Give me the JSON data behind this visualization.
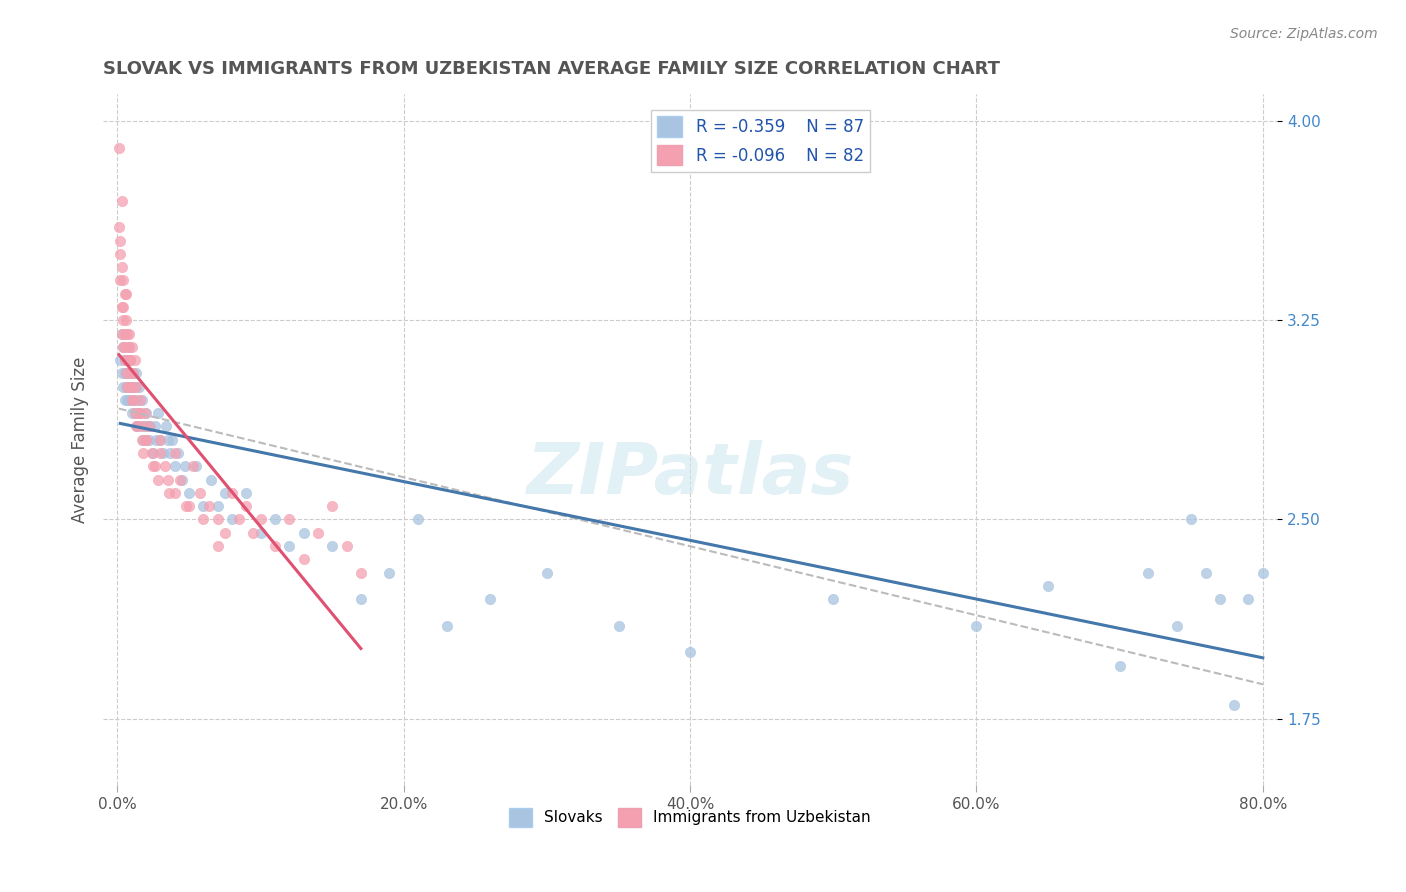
{
  "title": "SLOVAK VS IMMIGRANTS FROM UZBEKISTAN AVERAGE FAMILY SIZE CORRELATION CHART",
  "source_text": "Source: ZipAtlas.com",
  "xlabel": "",
  "ylabel": "Average Family Size",
  "xlim": [
    0.0,
    0.8
  ],
  "ylim": [
    1.5,
    4.1
  ],
  "yticks_right": [
    1.75,
    2.5,
    3.25,
    4.0
  ],
  "xtick_labels": [
    "0.0%",
    "20.0%",
    "40.0%",
    "60.0%",
    "80.0%"
  ],
  "xtick_vals": [
    0.0,
    0.2,
    0.4,
    0.6,
    0.8
  ],
  "legend": {
    "slovak_R": "-0.359",
    "slovak_N": "87",
    "uzbek_R": "-0.096",
    "uzbek_N": "82"
  },
  "slovak_color": "#a8c4e0",
  "uzbek_color": "#f4a0b0",
  "slovak_line_color": "#4477aa",
  "uzbek_line_color": "#e05070",
  "trendline_color": "#bbbbbb",
  "background_color": "#ffffff",
  "grid_color": "#cccccc",
  "watermark_text": "ZIPatlas",
  "title_color": "#555555",
  "title_fontsize": 13,
  "slovak_scatter": {
    "x": [
      0.002,
      0.003,
      0.003,
      0.004,
      0.004,
      0.005,
      0.005,
      0.005,
      0.006,
      0.006,
      0.006,
      0.007,
      0.007,
      0.007,
      0.008,
      0.008,
      0.008,
      0.009,
      0.009,
      0.01,
      0.01,
      0.01,
      0.011,
      0.011,
      0.012,
      0.012,
      0.013,
      0.013,
      0.014,
      0.015,
      0.015,
      0.016,
      0.016,
      0.017,
      0.018,
      0.019,
      0.02,
      0.021,
      0.022,
      0.023,
      0.025,
      0.026,
      0.027,
      0.028,
      0.03,
      0.032,
      0.034,
      0.035,
      0.037,
      0.038,
      0.04,
      0.042,
      0.045,
      0.047,
      0.05,
      0.055,
      0.06,
      0.065,
      0.07,
      0.075,
      0.08,
      0.09,
      0.1,
      0.11,
      0.12,
      0.13,
      0.15,
      0.17,
      0.19,
      0.21,
      0.23,
      0.26,
      0.3,
      0.35,
      0.4,
      0.5,
      0.6,
      0.65,
      0.7,
      0.72,
      0.74,
      0.75,
      0.76,
      0.77,
      0.78,
      0.79,
      0.8
    ],
    "y": [
      3.1,
      3.05,
      3.2,
      3.15,
      3.0,
      3.05,
      3.1,
      2.95,
      3.05,
      3.0,
      3.1,
      2.95,
      3.0,
      3.1,
      2.95,
      3.05,
      3.15,
      3.0,
      3.1,
      2.9,
      3.0,
      3.05,
      2.95,
      3.0,
      2.9,
      3.0,
      2.85,
      3.05,
      2.95,
      2.9,
      3.0,
      2.85,
      2.9,
      2.95,
      2.8,
      2.85,
      2.9,
      2.85,
      2.8,
      2.85,
      2.75,
      2.85,
      2.8,
      2.9,
      2.8,
      2.75,
      2.85,
      2.8,
      2.75,
      2.8,
      2.7,
      2.75,
      2.65,
      2.7,
      2.6,
      2.7,
      2.55,
      2.65,
      2.55,
      2.6,
      2.5,
      2.6,
      2.45,
      2.5,
      2.4,
      2.45,
      2.4,
      2.2,
      2.3,
      2.5,
      2.1,
      2.2,
      2.3,
      2.1,
      2.0,
      2.2,
      2.1,
      2.25,
      1.95,
      2.3,
      2.1,
      2.5,
      2.3,
      2.2,
      1.8,
      2.2,
      2.3
    ]
  },
  "uzbek_scatter": {
    "x": [
      0.001,
      0.001,
      0.002,
      0.002,
      0.003,
      0.003,
      0.003,
      0.004,
      0.004,
      0.004,
      0.005,
      0.005,
      0.005,
      0.006,
      0.006,
      0.007,
      0.007,
      0.008,
      0.008,
      0.009,
      0.009,
      0.01,
      0.01,
      0.011,
      0.012,
      0.013,
      0.014,
      0.015,
      0.016,
      0.017,
      0.018,
      0.019,
      0.02,
      0.022,
      0.024,
      0.026,
      0.028,
      0.03,
      0.033,
      0.036,
      0.04,
      0.044,
      0.048,
      0.053,
      0.058,
      0.064,
      0.07,
      0.075,
      0.08,
      0.085,
      0.09,
      0.095,
      0.1,
      0.11,
      0.12,
      0.13,
      0.14,
      0.15,
      0.16,
      0.17,
      0.002,
      0.003,
      0.004,
      0.005,
      0.006,
      0.007,
      0.008,
      0.009,
      0.01,
      0.011,
      0.012,
      0.014,
      0.016,
      0.018,
      0.02,
      0.025,
      0.03,
      0.035,
      0.04,
      0.05,
      0.06,
      0.07
    ],
    "y": [
      3.9,
      3.6,
      3.5,
      3.4,
      3.3,
      3.45,
      3.2,
      3.3,
      3.15,
      3.4,
      3.2,
      3.35,
      3.1,
      3.25,
      3.05,
      3.2,
      3.1,
      3.15,
      3.0,
      3.1,
      3.05,
      3.0,
      2.95,
      3.05,
      2.9,
      3.0,
      2.85,
      2.9,
      2.95,
      2.8,
      2.85,
      2.9,
      2.8,
      2.85,
      2.75,
      2.7,
      2.65,
      2.8,
      2.7,
      2.6,
      2.75,
      2.65,
      2.55,
      2.7,
      2.6,
      2.55,
      2.5,
      2.45,
      2.6,
      2.5,
      2.55,
      2.45,
      2.5,
      2.4,
      2.5,
      2.35,
      2.45,
      2.55,
      2.4,
      2.3,
      3.55,
      3.7,
      3.25,
      3.15,
      3.35,
      3.0,
      3.2,
      3.1,
      3.15,
      2.95,
      3.1,
      2.85,
      2.9,
      2.75,
      2.8,
      2.7,
      2.75,
      2.65,
      2.6,
      2.55,
      2.5,
      2.4
    ]
  }
}
